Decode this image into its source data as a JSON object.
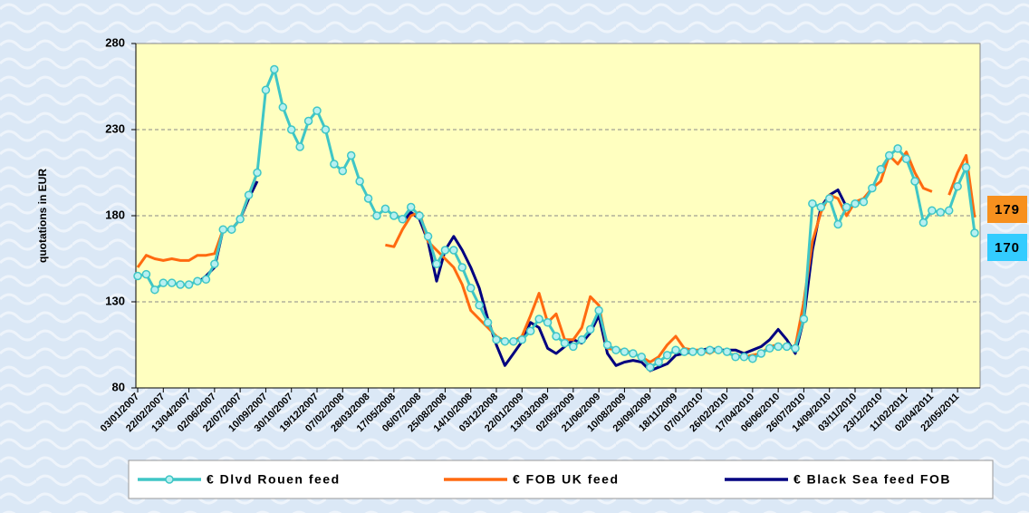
{
  "chart_data": {
    "type": "line",
    "y_axis_label": "quotations in EUR",
    "ylim": [
      80,
      280
    ],
    "yticks": [
      80,
      130,
      180,
      230,
      280
    ],
    "grid": true,
    "categories": [
      "03/01/2007",
      null,
      null,
      "22/02/2007",
      null,
      null,
      "13/04/2007",
      null,
      null,
      "02/06/2007",
      null,
      null,
      "22/07/2007",
      null,
      null,
      "10/09/2007",
      null,
      null,
      "30/10/2007",
      null,
      null,
      "19/12/2007",
      null,
      null,
      "07/02/2008",
      null,
      null,
      "28/03/2008",
      null,
      null,
      "17/05/2008",
      null,
      null,
      "06/07/2008",
      null,
      null,
      "25/08/2008",
      null,
      null,
      "14/10/2008",
      null,
      null,
      "03/12/2008",
      null,
      null,
      "22/01/2009",
      null,
      null,
      "13/03/2009",
      null,
      null,
      "02/05/2009",
      null,
      null,
      "21/06/2009",
      null,
      null,
      "10/08/2009",
      null,
      null,
      "29/09/2009",
      null,
      null,
      "18/11/2009",
      null,
      null,
      "07/01/2010",
      null,
      null,
      "26/02/2010",
      null,
      null,
      "17/04/2010",
      null,
      null,
      "06/06/2010",
      null,
      null,
      "26/07/2010",
      null,
      null,
      "14/09/2010",
      null,
      null,
      "03/11/2010",
      null,
      null,
      "23/12/2010",
      null,
      null,
      "11/02/2011",
      null,
      null,
      "02/04/2011",
      null,
      null,
      "22/05/2011",
      null,
      null
    ],
    "series": [
      {
        "name": "€ Dlvd Rouen feed",
        "color": "#3fc6c6",
        "markers": true,
        "values": [
          145,
          146,
          137,
          141,
          141,
          140,
          140,
          142,
          143,
          152,
          172,
          172,
          178,
          192,
          205,
          253,
          265,
          243,
          230,
          220,
          235,
          241,
          230,
          210,
          206,
          215,
          200,
          190,
          180,
          184,
          180,
          178,
          185,
          180,
          168,
          152,
          160,
          160,
          150,
          138,
          128,
          118,
          108,
          107,
          107,
          108,
          113,
          120,
          118,
          110,
          106,
          104,
          108,
          114,
          125,
          105,
          102,
          101,
          100,
          98,
          92,
          95,
          99,
          102,
          101,
          101,
          101,
          102,
          102,
          101,
          98,
          98,
          97,
          100,
          103,
          104,
          104,
          103,
          120,
          187,
          185,
          190,
          175,
          185,
          187,
          188,
          196,
          207,
          215,
          219,
          213,
          200,
          176,
          183,
          182,
          183,
          197,
          208,
          170
        ]
      },
      {
        "name": "€ FOB UK feed",
        "color": "#ff6a10",
        "markers": false,
        "values": [
          150,
          157,
          155,
          154,
          155,
          154,
          154,
          157,
          157,
          158,
          172,
          172,
          178,
          192,
          205,
          null,
          null,
          null,
          null,
          null,
          null,
          null,
          null,
          null,
          null,
          null,
          null,
          null,
          null,
          163,
          162,
          172,
          180,
          182,
          165,
          160,
          155,
          150,
          140,
          125,
          120,
          115,
          110,
          107,
          107,
          110,
          122,
          135,
          118,
          123,
          108,
          108,
          115,
          133,
          128,
          103,
          102,
          102,
          100,
          98,
          95,
          98,
          105,
          110,
          103,
          102,
          102,
          100,
          103,
          100,
          99,
          98,
          99,
          100,
          104,
          105,
          103,
          104,
          130,
          165,
          182,
          192,
          190,
          180,
          188,
          190,
          196,
          200,
          215,
          210,
          217,
          205,
          196,
          194,
          null,
          192,
          205,
          215,
          179
        ]
      },
      {
        "name": "€ Black Sea feed FOB",
        "color": "#000080",
        "markers": false,
        "values": [
          null,
          null,
          null,
          null,
          null,
          null,
          null,
          141,
          145,
          150,
          172,
          172,
          178,
          190,
          200,
          null,
          null,
          null,
          null,
          null,
          null,
          null,
          null,
          null,
          null,
          null,
          null,
          null,
          null,
          null,
          null,
          176,
          182,
          178,
          165,
          142,
          160,
          168,
          160,
          150,
          138,
          120,
          105,
          93,
          100,
          107,
          118,
          115,
          103,
          100,
          104,
          108,
          106,
          112,
          122,
          100,
          93,
          95,
          96,
          95,
          90,
          92,
          94,
          99,
          100,
          101,
          102,
          103,
          102,
          102,
          102,
          100,
          102,
          104,
          108,
          114,
          108,
          100,
          120,
          160,
          185,
          192,
          195,
          185,
          null,
          null,
          null,
          null,
          null,
          null,
          null,
          null,
          null,
          null,
          null,
          null,
          null,
          null,
          null
        ]
      }
    ],
    "end_labels": [
      {
        "text": "179",
        "color": "#f7901e"
      },
      {
        "text": "170",
        "color": "#33ccff"
      }
    ]
  }
}
